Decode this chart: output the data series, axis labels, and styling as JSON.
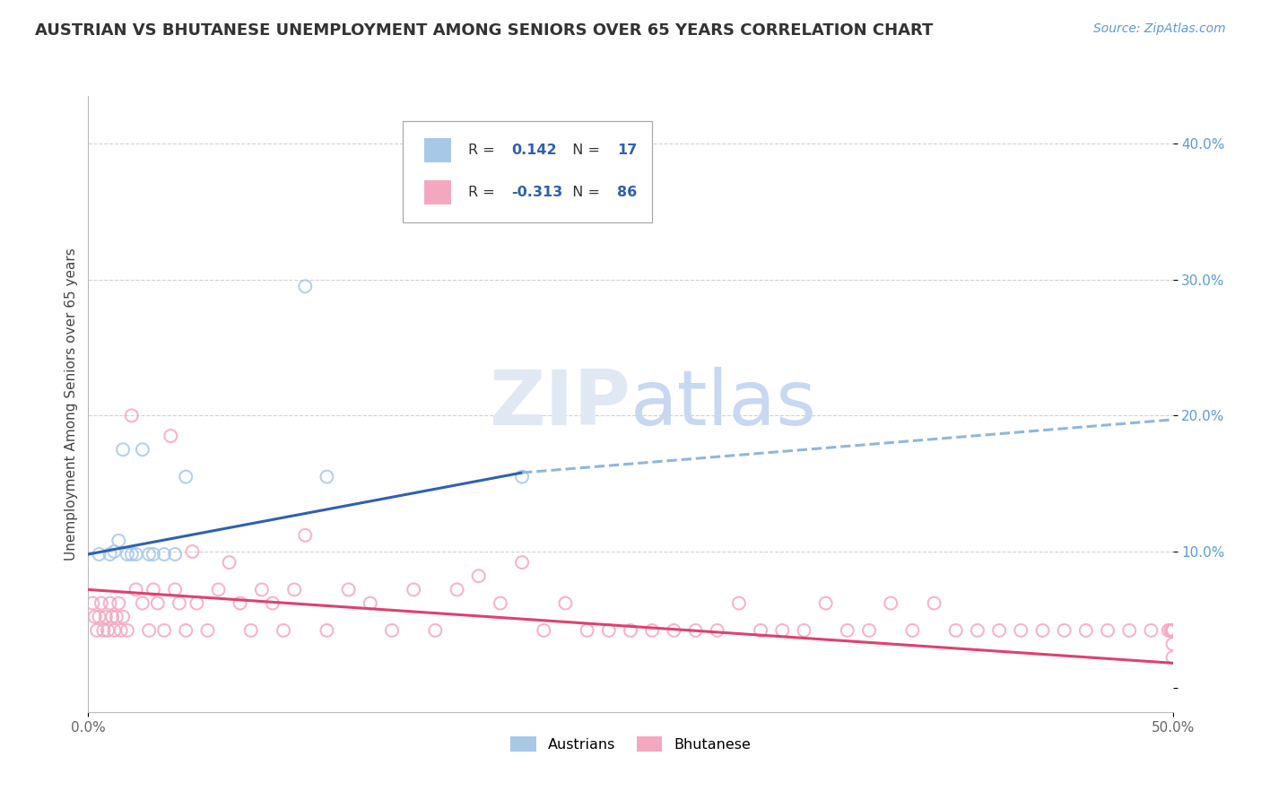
{
  "title": "AUSTRIAN VS BHUTANESE UNEMPLOYMENT AMONG SENIORS OVER 65 YEARS CORRELATION CHART",
  "source": "Source: ZipAtlas.com",
  "ylabel": "Unemployment Among Seniors over 65 years",
  "y_ticks_labels": [
    "",
    "10.0%",
    "20.0%",
    "30.0%",
    "40.0%"
  ],
  "y_tick_vals": [
    0.0,
    0.1,
    0.2,
    0.3,
    0.4
  ],
  "xlim": [
    0.0,
    0.5
  ],
  "ylim": [
    -0.018,
    0.435
  ],
  "legend_R_austrians": "0.142",
  "legend_N_austrians": "17",
  "legend_R_bhutanese": "-0.313",
  "legend_N_bhutanese": "86",
  "austrian_color": "#A8C8E8",
  "bhutanese_color": "#F4A8C0",
  "austrian_line_color": "#3060B0",
  "bhutanese_line_color": "#E04070",
  "dashed_color": "#90B8D8",
  "watermark_color": "#E0E8F4",
  "grid_color": "#CCCCCC",
  "title_color": "#333333",
  "source_color": "#5B9BD5",
  "ylabel_color": "#444444",
  "ytick_color": "#5B9BD5",
  "xtick_color": "#666666",
  "austrian_line_start_x": 0.0,
  "austrian_line_start_y": 0.098,
  "austrian_line_solid_end_x": 0.2,
  "austrian_line_solid_end_y": 0.158,
  "austrian_line_dash_end_x": 0.5,
  "austrian_line_dash_end_y": 0.197,
  "bhutanese_line_start_x": 0.0,
  "bhutanese_line_start_y": 0.072,
  "bhutanese_line_end_x": 0.5,
  "bhutanese_line_end_y": 0.018,
  "austrian_x": [
    0.005,
    0.01,
    0.012,
    0.014,
    0.016,
    0.018,
    0.02,
    0.022,
    0.025,
    0.028,
    0.03,
    0.035,
    0.04,
    0.045,
    0.1,
    0.11,
    0.2
  ],
  "austrian_y": [
    0.098,
    0.098,
    0.1,
    0.108,
    0.175,
    0.098,
    0.098,
    0.098,
    0.175,
    0.098,
    0.098,
    0.098,
    0.098,
    0.155,
    0.295,
    0.155,
    0.155
  ],
  "bhutanese_x": [
    0.002,
    0.003,
    0.004,
    0.005,
    0.006,
    0.007,
    0.008,
    0.009,
    0.01,
    0.011,
    0.012,
    0.013,
    0.014,
    0.015,
    0.016,
    0.018,
    0.02,
    0.022,
    0.025,
    0.028,
    0.03,
    0.032,
    0.035,
    0.038,
    0.04,
    0.042,
    0.045,
    0.048,
    0.05,
    0.055,
    0.06,
    0.065,
    0.07,
    0.075,
    0.08,
    0.085,
    0.09,
    0.095,
    0.1,
    0.11,
    0.12,
    0.13,
    0.14,
    0.15,
    0.16,
    0.17,
    0.18,
    0.19,
    0.2,
    0.21,
    0.22,
    0.23,
    0.24,
    0.25,
    0.26,
    0.27,
    0.28,
    0.29,
    0.3,
    0.31,
    0.32,
    0.33,
    0.34,
    0.35,
    0.36,
    0.37,
    0.38,
    0.39,
    0.4,
    0.41,
    0.42,
    0.43,
    0.44,
    0.45,
    0.46,
    0.47,
    0.48,
    0.49,
    0.498,
    0.499,
    0.5,
    0.5,
    0.5,
    0.5,
    0.5,
    0.5
  ],
  "bhutanese_y": [
    0.062,
    0.052,
    0.042,
    0.052,
    0.062,
    0.042,
    0.052,
    0.042,
    0.062,
    0.052,
    0.042,
    0.052,
    0.062,
    0.042,
    0.052,
    0.042,
    0.2,
    0.072,
    0.062,
    0.042,
    0.072,
    0.062,
    0.042,
    0.185,
    0.072,
    0.062,
    0.042,
    0.1,
    0.062,
    0.042,
    0.072,
    0.092,
    0.062,
    0.042,
    0.072,
    0.062,
    0.042,
    0.072,
    0.112,
    0.042,
    0.072,
    0.062,
    0.042,
    0.072,
    0.042,
    0.072,
    0.082,
    0.062,
    0.092,
    0.042,
    0.062,
    0.042,
    0.042,
    0.042,
    0.042,
    0.042,
    0.042,
    0.042,
    0.062,
    0.042,
    0.042,
    0.042,
    0.062,
    0.042,
    0.042,
    0.062,
    0.042,
    0.062,
    0.042,
    0.042,
    0.042,
    0.042,
    0.042,
    0.042,
    0.042,
    0.042,
    0.042,
    0.042,
    0.042,
    0.042,
    0.042,
    0.042,
    0.042,
    0.042,
    0.032,
    0.022
  ]
}
